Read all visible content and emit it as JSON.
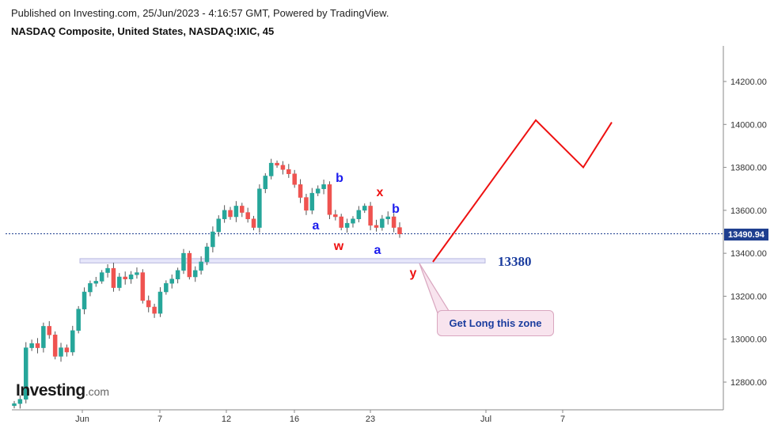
{
  "header": {
    "published": "Published on Investing.com, 25/Jun/2023 - 4:16:57 GMT, Powered by TradingView.",
    "symbol": "NASDAQ Composite, United States, NASDAQ:IXIC, 45"
  },
  "logo": {
    "main": "Investing",
    "domain": ".com"
  },
  "chart_data": {
    "type": "candlestick",
    "y_axis": {
      "ylim": [
        12680,
        14360
      ],
      "ticks": [
        "14200.00",
        "14000.00",
        "13800.00",
        "13600.00",
        "13400.00",
        "13200.00",
        "13000.00",
        "12800.00"
      ],
      "tick_values": [
        14200,
        14000,
        13800,
        13600,
        13400,
        13200,
        13000,
        12800
      ]
    },
    "x_axis": {
      "ticks": [
        "Jun",
        "7",
        "12",
        "16",
        "23",
        "Jul",
        "7"
      ]
    },
    "current_price": {
      "value": 13490.94,
      "label": "13490.94"
    },
    "support_zone": {
      "low": 13355,
      "high": 13375,
      "label": "13380"
    },
    "callout": "Get Long this zone",
    "wave_labels": [
      {
        "text": "b",
        "color": "#1a1aee"
      },
      {
        "text": "a",
        "color": "#1a1aee"
      },
      {
        "text": "x",
        "color": "#ee1111"
      },
      {
        "text": "w",
        "color": "#ee1111"
      },
      {
        "text": "b",
        "color": "#1a1aee"
      },
      {
        "text": "a",
        "color": "#1a1aee"
      },
      {
        "text": "y",
        "color": "#ee1111"
      }
    ],
    "projection": {
      "color": "#ee1111",
      "points": [
        [
          13360
        ],
        [
          14020
        ],
        [
          13800
        ],
        [
          14010
        ]
      ]
    },
    "price_path": [
      12700,
      12720,
      12960,
      12980,
      12960,
      13060,
      13020,
      12920,
      12960,
      12940,
      13040,
      13140,
      13220,
      13260,
      13270,
      13310,
      13330,
      13240,
      13290,
      13280,
      13300,
      13310,
      13180,
      13150,
      13120,
      13220,
      13260,
      13280,
      13320,
      13400,
      13290,
      13320,
      13360,
      13430,
      13500,
      13560,
      13600,
      13570,
      13620,
      13590,
      13560,
      13520,
      13700,
      13760,
      13820,
      13810,
      13790,
      13770,
      13720,
      13660,
      13600,
      13680,
      13700,
      13720,
      13580,
      13570,
      13520,
      13540,
      13560,
      13600,
      13620,
      13530,
      13520,
      13560,
      13570,
      13520,
      13490
    ]
  },
  "colors": {
    "up": "#26a69a",
    "down": "#ef5350",
    "wick": "#555555",
    "axis": "#8a8a8a"
  }
}
